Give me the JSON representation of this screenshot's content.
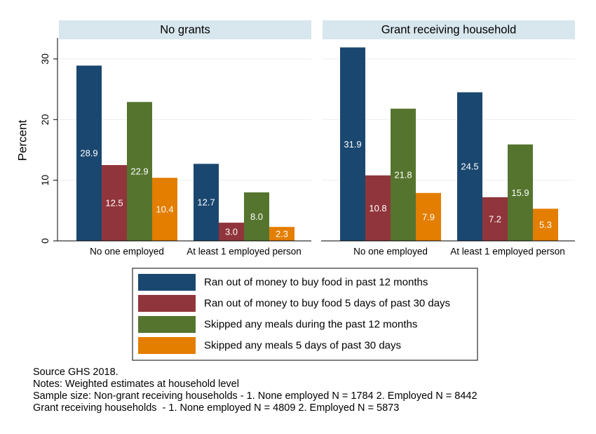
{
  "chart_data": {
    "type": "bar",
    "ylabel": "Percent",
    "ylim": [
      0,
      33
    ],
    "yticks": [
      0,
      10,
      20,
      30
    ],
    "grid": true,
    "legend_position": "bottom",
    "panels": [
      {
        "title": "No grants",
        "categories": [
          "No one employed",
          "At least 1 employed person"
        ],
        "series": [
          {
            "name": "Ran out of money to buy food in past 12 months",
            "values": [
              28.9,
              12.7
            ]
          },
          {
            "name": "Ran out of money to buy food 5 days of past 30 days",
            "values": [
              12.5,
              3.0
            ]
          },
          {
            "name": "Skipped any meals during the past 12 months",
            "values": [
              22.9,
              8.0
            ]
          },
          {
            "name": "Skipped any meals 5 days of past 30 days",
            "values": [
              10.4,
              2.3
            ]
          }
        ]
      },
      {
        "title": "Grant receiving household",
        "categories": [
          "No one employed",
          "At least 1 employed person"
        ],
        "series": [
          {
            "name": "Ran out of money to buy food in past 12 months",
            "values": [
              31.9,
              24.5
            ]
          },
          {
            "name": "Ran out of money to buy food 5 days of past 30 days",
            "values": [
              10.8,
              7.2
            ]
          },
          {
            "name": "Skipped any meals during the past 12 months",
            "values": [
              21.8,
              15.9
            ]
          },
          {
            "name": "Skipped any meals 5 days of past 30 days",
            "values": [
              7.9,
              5.3
            ]
          }
        ]
      }
    ],
    "series_colors": [
      "#1a476f",
      "#90353b",
      "#55752f",
      "#e37e00"
    ],
    "legend": [
      "Ran out of money to buy food in past 12 months",
      "Ran out of money to buy food 5 days of past 30 days",
      "Skipped any meals during the past 12 months",
      "Skipped any meals 5 days of past 30 days"
    ]
  },
  "notes": {
    "source": "Source GHS 2018.",
    "line2": "Notes: Weighted estimates at household level",
    "line3": "Sample size: Non-grant receiving households - 1. None employed N = 1784 2. Employed N = 8442",
    "line4": "Grant receiving households  - 1. None employed N = 4809 2. Employed N = 5873"
  },
  "colors": {
    "panel_header": "#d8e6ee",
    "grid": "#e9eef1",
    "label_text": "#ffffff"
  }
}
